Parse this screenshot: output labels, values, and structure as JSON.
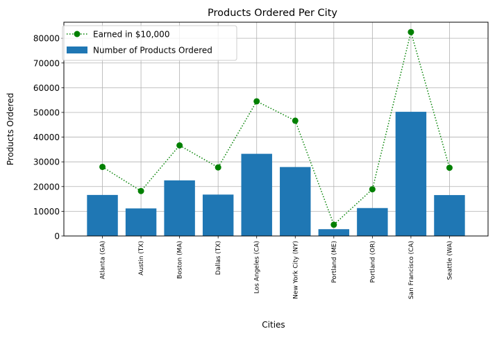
{
  "chart_data": {
    "type": "bar",
    "title": "Products Ordered Per City",
    "xlabel": "Cities",
    "ylabel": "Products Ordered",
    "ylim": [
      0,
      86500
    ],
    "yticks": [
      0,
      10000,
      20000,
      30000,
      40000,
      50000,
      60000,
      70000,
      80000
    ],
    "ytick_labels": [
      "0",
      "10000",
      "20000",
      "30000",
      "40000",
      "50000",
      "60000",
      "70000",
      "80000"
    ],
    "grid": true,
    "legend_position": "top-left",
    "categories": [
      "Atlanta (GA)",
      "Austin (TX)",
      "Boston (MA)",
      "Dallas (TX)",
      "Los Angeles (CA)",
      "New York City (NY)",
      "Portland (ME)",
      "Portland (OR)",
      "San Francisco (CA)",
      "Seattle (WA)"
    ],
    "series": [
      {
        "name": "Number of Products Ordered",
        "kind": "bar",
        "color": "#1f77b4",
        "values": [
          16600,
          11150,
          22500,
          16750,
          33250,
          27900,
          2750,
          11300,
          50250,
          16550
        ]
      },
      {
        "name": "Earned in $10,000",
        "kind": "line",
        "style": "dotted",
        "marker": "circle",
        "color": "#008000",
        "values": [
          27950,
          18200,
          36650,
          27750,
          54500,
          46650,
          4550,
          18900,
          82500,
          27600
        ]
      }
    ]
  }
}
